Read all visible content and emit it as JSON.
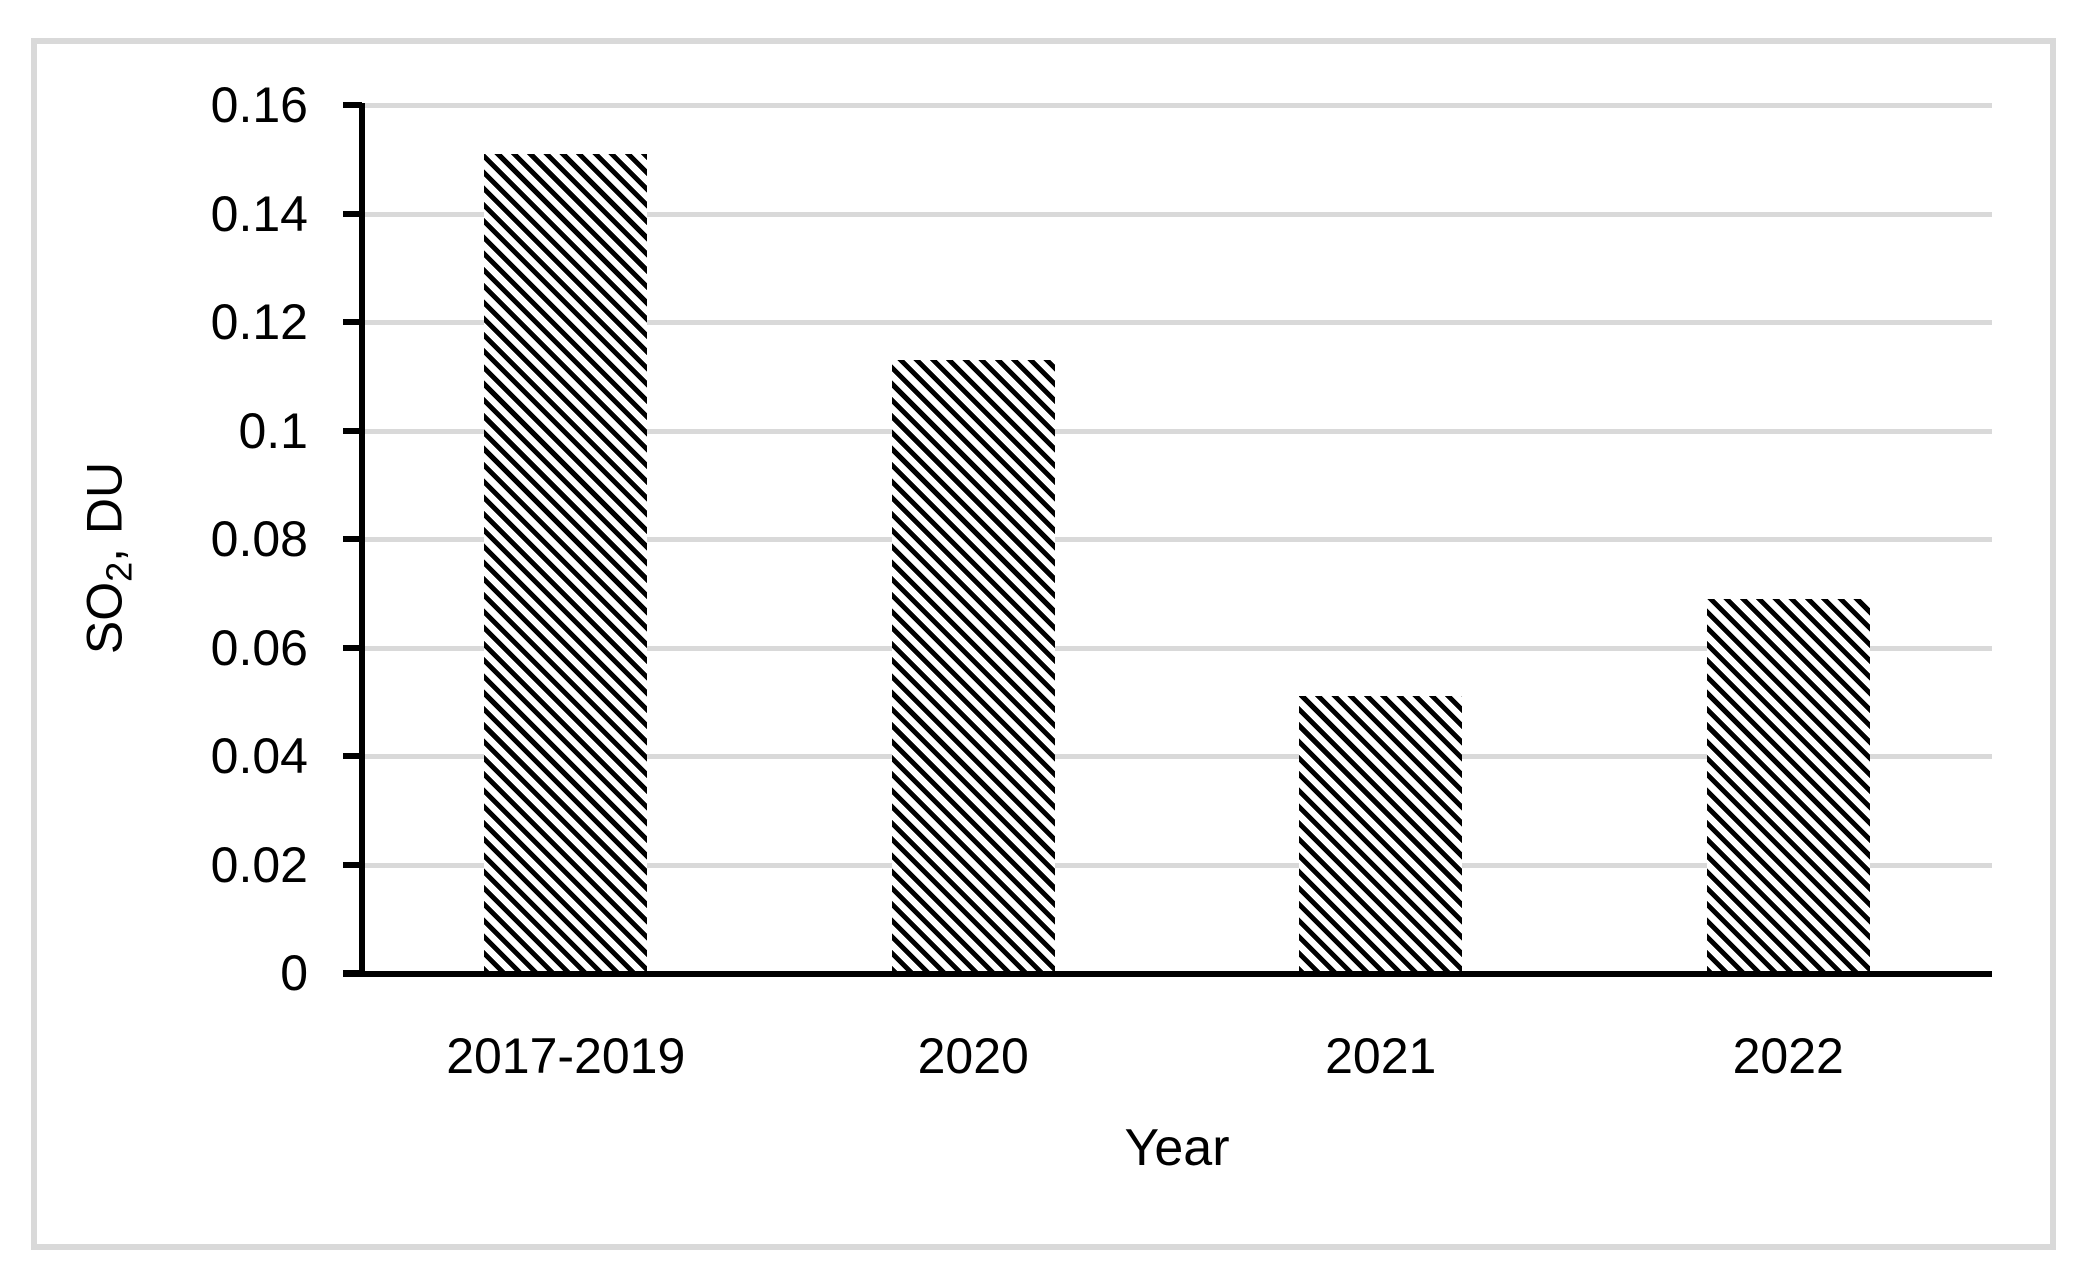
{
  "figure": {
    "background": "#ffffff",
    "border_color": "#d9d9d9"
  },
  "colors": {
    "axis": "#000000",
    "gridline": "#d9d9d9",
    "text": "#000000",
    "hatch_foreground": "#000000",
    "hatch_background": "#ffffff"
  },
  "chart_data": {
    "type": "bar",
    "title": "",
    "categories": [
      "2017-2019",
      "2020",
      "2021",
      "2022"
    ],
    "values": [
      0.151,
      0.113,
      0.051,
      0.069
    ],
    "xlabel": "Year",
    "ylabel": "SO2, DU",
    "ylabel_parts": {
      "prefix": "SO",
      "subscript": "2",
      "suffix": ", DU"
    },
    "ylim": [
      0,
      0.16
    ],
    "ytick_step": 0.02,
    "yticks": [
      {
        "value": 0.0,
        "label": "0"
      },
      {
        "value": 0.02,
        "label": "0.02"
      },
      {
        "value": 0.04,
        "label": "0.04"
      },
      {
        "value": 0.06,
        "label": "0.06"
      },
      {
        "value": 0.08,
        "label": "0.08"
      },
      {
        "value": 0.1,
        "label": "0.1"
      },
      {
        "value": 0.12,
        "label": "0.12"
      },
      {
        "value": 0.14,
        "label": "0.14"
      },
      {
        "value": 0.16,
        "label": "0.16"
      }
    ],
    "grid": true,
    "legend": null,
    "bar_fill": "wide downward diagonal hatch, black on white",
    "bar_series_count": 1
  }
}
